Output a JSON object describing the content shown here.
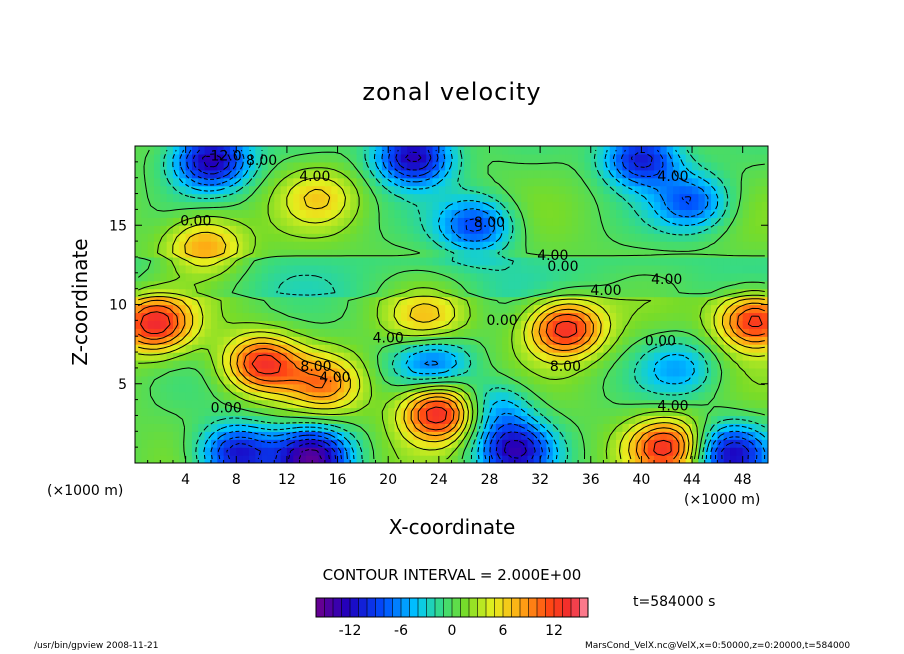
{
  "chart_data": {
    "type": "heatmap",
    "title": "zonal velocity",
    "xlabel": "X-coordinate",
    "ylabel": "Z-coordinate",
    "x_unit": "(×1000 m)",
    "z_unit": "(×1000 m)",
    "xlim": [
      0,
      50
    ],
    "ylim": [
      0,
      20
    ],
    "x_ticks": [
      4,
      8,
      12,
      16,
      20,
      24,
      28,
      32,
      36,
      40,
      44,
      48
    ],
    "y_ticks": [
      5,
      10,
      15
    ],
    "contour_interval_text": "CONTOUR INTERVAL = 2.000E+00",
    "colorbar": {
      "range": [
        -16,
        16
      ],
      "ticks": [
        -12,
        -6,
        0,
        6,
        12
      ]
    },
    "contour_labels": [
      {
        "text": "8.00",
        "x": 10.0,
        "z": 18.8
      },
      {
        "text": "4.00",
        "x": 14.2,
        "z": 17.8
      },
      {
        "text": "-12.0",
        "x": 7.0,
        "z": 19.1
      },
      {
        "text": "0.00",
        "x": 4.8,
        "z": 15.0
      },
      {
        "text": "8.00",
        "x": 28.0,
        "z": 14.9
      },
      {
        "text": "4.00",
        "x": 42.5,
        "z": 17.8
      },
      {
        "text": "4.00",
        "x": 33.0,
        "z": 12.8
      },
      {
        "text": "0.00",
        "x": 33.8,
        "z": 12.1
      },
      {
        "text": "4.00",
        "x": 37.2,
        "z": 10.6
      },
      {
        "text": "4.00",
        "x": 42.0,
        "z": 11.3
      },
      {
        "text": "0.00",
        "x": 29.0,
        "z": 8.7
      },
      {
        "text": "4.00",
        "x": 20.0,
        "z": 7.6
      },
      {
        "text": "8.00",
        "x": 14.3,
        "z": 5.8
      },
      {
        "text": "4.00",
        "x": 15.8,
        "z": 5.1
      },
      {
        "text": "8.00",
        "x": 34.0,
        "z": 5.8
      },
      {
        "text": "0.00",
        "x": 41.5,
        "z": 7.4
      },
      {
        "text": "0.00",
        "x": 7.2,
        "z": 3.2
      },
      {
        "text": "4.00",
        "x": 42.5,
        "z": 3.3
      }
    ],
    "features": [
      {
        "x": 1.5,
        "z": 8.8,
        "u": 13
      },
      {
        "x": 10.0,
        "z": 6.3,
        "u": 12
      },
      {
        "x": 15.0,
        "z": 5.0,
        "u": 8
      },
      {
        "x": 24.0,
        "z": 3.2,
        "u": 14
      },
      {
        "x": 34.0,
        "z": 8.5,
        "u": 13
      },
      {
        "x": 49.0,
        "z": 9.0,
        "u": 13
      },
      {
        "x": 42.0,
        "z": 1.0,
        "u": 12
      },
      {
        "x": 23.0,
        "z": 9.0,
        "u": 6
      },
      {
        "x": 5.5,
        "z": 13.8,
        "u": 8
      },
      {
        "x": 14.5,
        "z": 16.8,
        "u": 5
      },
      {
        "x": 8.0,
        "z": 0.6,
        "u": -12
      },
      {
        "x": 14.0,
        "z": 0.4,
        "u": -14
      },
      {
        "x": 30.0,
        "z": 0.8,
        "u": -12
      },
      {
        "x": 47.0,
        "z": 0.6,
        "u": -12
      },
      {
        "x": 6.0,
        "z": 19.2,
        "u": -14
      },
      {
        "x": 22.0,
        "z": 19.4,
        "u": -14
      },
      {
        "x": 40.0,
        "z": 19.3,
        "u": -12
      },
      {
        "x": 27.0,
        "z": 15.0,
        "u": -9
      },
      {
        "x": 44.0,
        "z": 16.5,
        "u": -8
      },
      {
        "x": 23.5,
        "z": 6.5,
        "u": -7
      },
      {
        "x": 28.5,
        "z": 3.5,
        "u": -6
      },
      {
        "x": 43.0,
        "z": 6.0,
        "u": -5
      }
    ]
  },
  "time_label": "t=584000 s",
  "footer_left": "/usr/bin/gpview   2008-11-21",
  "footer_right": "MarsCond_VelX.nc@VelX,x=0:50000,z=0:20000,t=584000"
}
